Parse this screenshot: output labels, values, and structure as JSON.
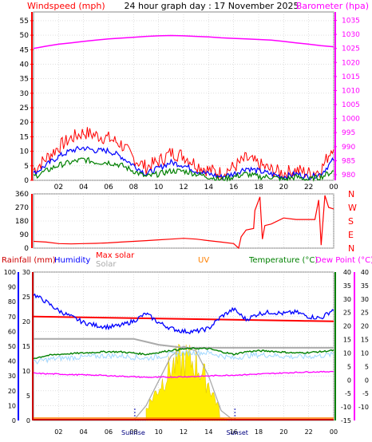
{
  "header": {
    "title": "24 hour graph day : 17 November 2025",
    "left_label": "Windspeed (mph)",
    "right_label": "Barometer (hpa)"
  },
  "colors": {
    "wind": "#ff0000",
    "gust": "#ff0000",
    "avg": "#0000ff",
    "low": "#008000",
    "baro": "#ff00ff",
    "dir": "#ff0000",
    "rain": "#cc0000",
    "humidity": "#0000ff",
    "solar": "#aaaaaa",
    "maxsolar": "#ff0000",
    "uv": "#ff8000",
    "temp": "#008000",
    "dew": "#ff00ff",
    "sunfill": "#ffee00",
    "grid": "#cccccc"
  },
  "chart_data": [
    {
      "type": "line",
      "title": "24 hour graph day : 17 November 2025",
      "xlabel": "",
      "x_ticks": [
        "02",
        "04",
        "06",
        "08",
        "10",
        "12",
        "14",
        "16",
        "18",
        "20",
        "22",
        "00"
      ],
      "y_left_label": "Windspeed (mph)",
      "y_left_ticks": [
        0,
        5,
        10,
        15,
        20,
        25,
        30,
        35,
        40,
        45,
        50,
        55
      ],
      "ylim_left": [
        0,
        58
      ],
      "y_right_label": "Barometer (hpa)",
      "y_right_ticks": [
        980,
        985,
        990,
        995,
        1000,
        1005,
        1010,
        1015,
        1020,
        1025,
        1030,
        1035
      ],
      "ylim_right": [
        978,
        1038
      ],
      "grid": true,
      "x_hours": [
        0,
        1,
        2,
        3,
        4,
        5,
        6,
        7,
        8,
        9,
        10,
        11,
        12,
        13,
        14,
        15,
        16,
        17,
        18,
        19,
        20,
        21,
        22,
        23,
        24
      ],
      "series": [
        {
          "name": "Windspeed (mph)",
          "axis": "left",
          "values": [
            3,
            7,
            11,
            14,
            16,
            15,
            14,
            12,
            7,
            4,
            6,
            9,
            8,
            5,
            3,
            2,
            4,
            7,
            5,
            3,
            2,
            3,
            2,
            3,
            12
          ]
        },
        {
          "name": "Average",
          "axis": "left",
          "values": [
            2,
            5,
            8,
            10,
            11,
            10,
            10,
            8,
            5,
            2,
            4,
            6,
            5,
            3,
            2,
            1,
            2,
            4,
            3,
            2,
            1,
            2,
            1,
            2,
            7
          ]
        },
        {
          "name": "Low",
          "axis": "left",
          "values": [
            1,
            3,
            5,
            6,
            7,
            6,
            6,
            5,
            3,
            1,
            2,
            3,
            3,
            2,
            1,
            0,
            1,
            2,
            1,
            1,
            0,
            1,
            0,
            1,
            3
          ]
        },
        {
          "name": "Barometer (hpa)",
          "axis": "right",
          "values": [
            1025,
            1025.8,
            1026.5,
            1027,
            1027.5,
            1028,
            1028.4,
            1028.7,
            1029,
            1029.3,
            1029.5,
            1029.6,
            1029.5,
            1029.3,
            1029.1,
            1028.8,
            1028.6,
            1028.4,
            1028.2,
            1028,
            1027.5,
            1027,
            1026.5,
            1026,
            1025.6
          ]
        }
      ]
    },
    {
      "type": "line",
      "title": "",
      "y_ticks": [
        0,
        90,
        180,
        270,
        360
      ],
      "ylim": [
        0,
        360
      ],
      "y_right_labels": [
        "N",
        "W",
        "S",
        "E",
        "N"
      ],
      "grid": true,
      "series": [
        {
          "name": "Wind direction",
          "points": [
            [
              0,
              45
            ],
            [
              1,
              40
            ],
            [
              2,
              30
            ],
            [
              3,
              28
            ],
            [
              4,
              30
            ],
            [
              5,
              32
            ],
            [
              6,
              35
            ],
            [
              7,
              40
            ],
            [
              8,
              45
            ],
            [
              9,
              50
            ],
            [
              10,
              55
            ],
            [
              11,
              60
            ],
            [
              12,
              65
            ],
            [
              13,
              60
            ],
            [
              14,
              50
            ],
            [
              15,
              40
            ],
            [
              16,
              30
            ],
            [
              16.4,
              0
            ],
            [
              16.6,
              75
            ],
            [
              17,
              120
            ],
            [
              17.6,
              130
            ],
            [
              17.7,
              250
            ],
            [
              18.1,
              340
            ],
            [
              18.3,
              60
            ],
            [
              18.5,
              150
            ],
            [
              19,
              160
            ],
            [
              20,
              200
            ],
            [
              21,
              190
            ],
            [
              22.5,
              190
            ],
            [
              22.8,
              320
            ],
            [
              23,
              20
            ],
            [
              23.3,
              350
            ],
            [
              23.6,
              270
            ],
            [
              24,
              260
            ]
          ]
        }
      ]
    },
    {
      "type": "line",
      "title": "",
      "labels": {
        "rain": "Rainfall (mm)",
        "humidity": "Humidity",
        "maxsolar": "Max solar",
        "solar": "Solar",
        "uv": "UV",
        "temp": "Temperature (°C)",
        "dew": "Dew Point (°C)"
      },
      "y_hum_ticks": [
        0,
        10,
        20,
        30,
        40,
        50,
        60,
        70,
        80,
        90,
        100
      ],
      "y_rain_ticks": [
        0,
        5,
        10,
        15,
        20,
        25,
        30
      ],
      "y_temp_ticks": [
        -15,
        -10,
        -5,
        0,
        5,
        10,
        15,
        20,
        25,
        30,
        35,
        40
      ],
      "y_dew_ticks": [
        -10,
        -5,
        0,
        5,
        10,
        15,
        20,
        25,
        30,
        35,
        40
      ],
      "ylim_humidity": [
        0,
        100
      ],
      "ylim_temp": [
        -15,
        40
      ],
      "x_ticks": [
        "02",
        "04",
        "06",
        "08",
        "10",
        "12",
        "14",
        "16",
        "18",
        "20",
        "22",
        "00"
      ],
      "sun_labels": [
        "Sunrise",
        "Sunset"
      ],
      "grid": true,
      "series": [
        {
          "name": "Humidity",
          "axis": "humidity",
          "values": [
            85,
            80,
            74,
            70,
            66,
            64,
            63,
            64,
            67,
            72,
            66,
            62,
            60,
            60,
            62,
            70,
            75,
            68,
            72,
            73,
            72,
            73,
            70,
            69,
            75
          ]
        },
        {
          "name": "Rainfall (mm)",
          "axis": "rain",
          "values": [
            0,
            0,
            0,
            0,
            0,
            0,
            0,
            0,
            0,
            0,
            0,
            0,
            0,
            0,
            0,
            0,
            0,
            0,
            0,
            0,
            0,
            0,
            0,
            0,
            0
          ]
        },
        {
          "name": "Temperature (°C)",
          "axis": "temp",
          "values": [
            8,
            9,
            9.5,
            9.8,
            10,
            10.3,
            10.5,
            10.4,
            10,
            9.5,
            10.2,
            11,
            11.5,
            11.7,
            11.6,
            10.5,
            9.5,
            10.5,
            10.8,
            10.7,
            10.3,
            10,
            10.2,
            10.5,
            11
          ]
        },
        {
          "name": "Dew Point (°C)",
          "axis": "temp",
          "values": [
            2.5,
            2.3,
            2.2,
            2,
            1.9,
            1.8,
            1.6,
            1.4,
            1.2,
            1,
            1,
            1.1,
            1.2,
            1.3,
            1.5,
            1.7,
            1.8,
            2,
            2.2,
            2.4,
            2.6,
            2.8,
            3,
            3,
            3.2
          ]
        },
        {
          "name": "Solar",
          "axis": "humidity",
          "values": [
            55,
            55,
            55,
            55,
            55,
            55,
            55,
            55,
            55,
            53,
            51,
            50,
            49,
            49,
            49,
            49,
            49,
            49,
            49,
            49,
            49,
            49,
            49,
            49,
            49
          ]
        },
        {
          "name": "Max solar",
          "axis": "rain",
          "values": [
            0,
            0,
            0,
            0,
            0,
            0,
            0,
            0,
            0,
            3,
            8,
            13,
            15,
            14,
            9,
            2,
            0,
            0,
            0,
            0,
            0,
            0,
            0,
            0,
            0
          ]
        },
        {
          "name": "UV",
          "axis": "rain",
          "values": [
            0,
            0,
            0,
            0,
            0,
            0,
            0,
            0,
            0,
            0,
            0,
            0,
            0,
            0,
            0,
            0,
            0,
            0,
            0,
            0,
            0,
            0,
            0,
            0,
            0
          ]
        }
      ]
    }
  ]
}
